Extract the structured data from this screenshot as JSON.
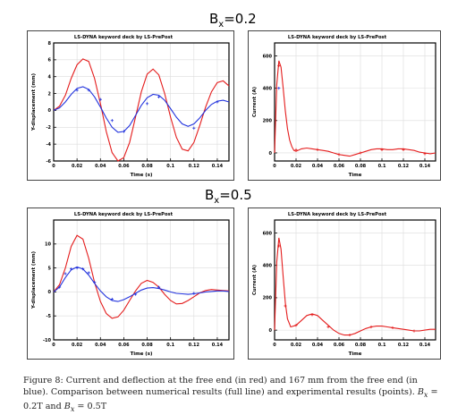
{
  "headings": [
    {
      "sym": "B",
      "sub": "x",
      "rest": "=0.2"
    },
    {
      "sym": "B",
      "sub": "x",
      "rest": "=0.5"
    }
  ],
  "caption": {
    "fig_label": "Figure 8:",
    "text": "Current and deflection at the free end (in red) and 167 mm from the free end (in blue). Comparison between numerical results (full line) and experimental results (points).",
    "bvals": [
      {
        "sym": "B",
        "sub": "x",
        "rest": " = 0.2T"
      },
      {
        "sym": "B",
        "sub": "x",
        "rest": " = 0.5T"
      }
    ],
    "conj": " and "
  },
  "colors": {
    "red": "#e41c1c",
    "blue": "#2233dd",
    "frame": "#000000",
    "grid": "#dcdcdc"
  },
  "chart_data": [
    {
      "type": "line",
      "title": "LS-DYNA keyword deck by LS-PrePost",
      "xlabel": "Time (s)",
      "ylabel": "Y-displacement (mm)",
      "xlim": [
        0,
        0.15
      ],
      "ylim": [
        -6,
        8
      ],
      "xticks": [
        "0",
        "0.02",
        "0.04",
        "0.06",
        "0.08",
        "0.1",
        "0.12",
        "0.14"
      ],
      "yticks": [
        "-6",
        "-4",
        "-2",
        "0",
        "2",
        "4",
        "6",
        "8"
      ],
      "grid": true,
      "series": [
        {
          "color": "red",
          "x": [
            0,
            0.005,
            0.01,
            0.015,
            0.02,
            0.025,
            0.03,
            0.035,
            0.04,
            0.045,
            0.05,
            0.055,
            0.06,
            0.065,
            0.07,
            0.075,
            0.08,
            0.085,
            0.09,
            0.095,
            0.1,
            0.105,
            0.11,
            0.115,
            0.12,
            0.125,
            0.13,
            0.135,
            0.14,
            0.145,
            0.15
          ],
          "values": [
            0,
            0.5,
            1.8,
            3.8,
            5.4,
            6.1,
            5.8,
            3.8,
            0.8,
            -2.5,
            -5.0,
            -6.0,
            -5.6,
            -3.8,
            -0.8,
            2.2,
            4.3,
            4.9,
            4.2,
            2.0,
            -0.8,
            -3.2,
            -4.6,
            -4.8,
            -3.8,
            -1.8,
            0.4,
            2.2,
            3.3,
            3.5,
            2.9
          ]
        },
        {
          "color": "blue",
          "x": [
            0,
            0.005,
            0.01,
            0.015,
            0.02,
            0.025,
            0.03,
            0.035,
            0.04,
            0.045,
            0.05,
            0.055,
            0.06,
            0.065,
            0.07,
            0.075,
            0.08,
            0.085,
            0.09,
            0.095,
            0.1,
            0.105,
            0.11,
            0.115,
            0.12,
            0.125,
            0.13,
            0.135,
            0.14,
            0.145,
            0.15
          ],
          "values": [
            0,
            0.3,
            1.0,
            1.9,
            2.6,
            2.8,
            2.5,
            1.6,
            0.4,
            -0.9,
            -2.0,
            -2.6,
            -2.5,
            -1.8,
            -0.6,
            0.6,
            1.5,
            1.9,
            1.8,
            1.2,
            0.2,
            -0.8,
            -1.6,
            -1.9,
            -1.6,
            -0.9,
            0,
            0.7,
            1.1,
            1.2,
            1.0
          ]
        }
      ],
      "points": [
        {
          "color": "blue",
          "x": [
            0.02,
            0.03,
            0.04,
            0.05,
            0.06,
            0.08,
            0.09,
            0.12,
            0.14
          ],
          "values": [
            2.4,
            2.4,
            1.3,
            -1.2,
            -2.5,
            0.8,
            1.6,
            -2.1,
            1.0
          ]
        }
      ]
    },
    {
      "type": "line",
      "title": "LS-DYNA keyword deck by LS-PrePost",
      "xlabel": "Time",
      "ylabel": "Current (A)",
      "xlim": [
        0,
        0.15
      ],
      "ylim": [
        -50,
        680
      ],
      "xticks": [
        "0",
        "0.02",
        "0.04",
        "0.06",
        "0.08",
        "0.1",
        "0.12",
        "0.14"
      ],
      "yticks": [
        "0",
        "200",
        "400",
        "600"
      ],
      "grid": true,
      "series": [
        {
          "color": "red",
          "x": [
            0,
            0.002,
            0.004,
            0.006,
            0.008,
            0.01,
            0.012,
            0.014,
            0.016,
            0.018,
            0.02,
            0.025,
            0.03,
            0.035,
            0.04,
            0.045,
            0.05,
            0.055,
            0.06,
            0.065,
            0.07,
            0.075,
            0.08,
            0.085,
            0.09,
            0.095,
            0.1,
            0.105,
            0.11,
            0.115,
            0.12,
            0.125,
            0.13,
            0.135,
            0.14,
            0.145,
            0.15
          ],
          "values": [
            0,
            420,
            570,
            530,
            400,
            260,
            150,
            80,
            40,
            15,
            10,
            25,
            30,
            25,
            20,
            15,
            10,
            0,
            -10,
            -15,
            -20,
            -10,
            0,
            10,
            20,
            25,
            25,
            20,
            20,
            25,
            25,
            20,
            15,
            5,
            0,
            -5,
            0
          ]
        }
      ],
      "points": [
        {
          "color": "red",
          "x": [
            0.004,
            0.02,
            0.04,
            0.06,
            0.08,
            0.1,
            0.12,
            0.14
          ],
          "values": [
            540,
            20,
            20,
            -10,
            0,
            20,
            20,
            -5
          ]
        },
        {
          "color": "blue",
          "x": [
            0.004
          ],
          "values": [
            400
          ]
        }
      ]
    },
    {
      "type": "line",
      "title": "LS-DYNA keyword deck by LS-PrePost",
      "xlabel": "Time (s)",
      "ylabel": "Y-displacement (mm)",
      "xlim": [
        0,
        0.15
      ],
      "ylim": [
        -10,
        15
      ],
      "xticks": [
        "0",
        "0.02",
        "0.04",
        "0.06",
        "0.08",
        "0.1",
        "0.12",
        "0.14"
      ],
      "yticks": [
        "-10",
        "-5",
        "0",
        "5",
        "10"
      ],
      "grid": true,
      "series": [
        {
          "color": "red",
          "x": [
            0,
            0.005,
            0.01,
            0.015,
            0.02,
            0.025,
            0.03,
            0.035,
            0.04,
            0.045,
            0.05,
            0.055,
            0.06,
            0.065,
            0.07,
            0.075,
            0.08,
            0.085,
            0.09,
            0.095,
            0.1,
            0.105,
            0.11,
            0.115,
            0.12,
            0.125,
            0.13,
            0.135,
            0.14,
            0.145,
            0.15
          ],
          "values": [
            0,
            1.5,
            5.0,
            9.5,
            11.8,
            11.0,
            7.0,
            2.0,
            -2.0,
            -4.5,
            -5.5,
            -5.2,
            -3.8,
            -1.8,
            0.2,
            1.8,
            2.4,
            2.0,
            1.0,
            -0.5,
            -1.8,
            -2.5,
            -2.4,
            -1.8,
            -1.0,
            -0.2,
            0.3,
            0.5,
            0.4,
            0.3,
            0.2
          ]
        },
        {
          "color": "blue",
          "x": [
            0,
            0.005,
            0.01,
            0.015,
            0.02,
            0.025,
            0.03,
            0.035,
            0.04,
            0.045,
            0.05,
            0.055,
            0.06,
            0.065,
            0.07,
            0.075,
            0.08,
            0.085,
            0.09,
            0.095,
            0.1,
            0.105,
            0.11,
            0.115,
            0.12,
            0.125,
            0.13,
            0.135,
            0.14,
            0.145,
            0.15
          ],
          "values": [
            0,
            1.0,
            3.0,
            4.6,
            5.2,
            4.8,
            3.5,
            1.8,
            0.2,
            -1.0,
            -1.8,
            -2.0,
            -1.6,
            -1.0,
            -0.3,
            0.4,
            0.8,
            0.9,
            0.7,
            0.4,
            0,
            -0.3,
            -0.4,
            -0.5,
            -0.4,
            -0.2,
            0,
            0.1,
            0.2,
            0.2,
            0.1
          ]
        }
      ],
      "points": [
        {
          "color": "blue",
          "x": [
            0.005,
            0.01,
            0.015,
            0.02,
            0.025,
            0.03,
            0.035,
            0.05,
            0.07,
            0.09,
            0.12
          ],
          "values": [
            1.0,
            3.8,
            4.8,
            5.0,
            4.8,
            4.0,
            2.0,
            -1.5,
            -0.5,
            1.0,
            -0.3
          ]
        }
      ]
    },
    {
      "type": "line",
      "title": "LS-DYNA keyword deck by LS-PrePost",
      "xlabel": "Time",
      "ylabel": "Current (A)",
      "xlim": [
        0,
        0.15
      ],
      "ylim": [
        -60,
        680
      ],
      "xticks": [
        "0",
        "0.02",
        "0.04",
        "0.06",
        "0.08",
        "0.1",
        "0.12",
        "0.14"
      ],
      "yticks": [
        "0",
        "200",
        "400",
        "600"
      ],
      "grid": true,
      "series": [
        {
          "color": "red",
          "x": [
            0,
            0.002,
            0.004,
            0.006,
            0.008,
            0.01,
            0.012,
            0.015,
            0.02,
            0.025,
            0.03,
            0.035,
            0.04,
            0.045,
            0.05,
            0.055,
            0.06,
            0.065,
            0.07,
            0.075,
            0.08,
            0.085,
            0.09,
            0.095,
            0.1,
            0.105,
            0.11,
            0.115,
            0.12,
            0.125,
            0.13,
            0.135,
            0.14,
            0.145,
            0.15
          ],
          "values": [
            0,
            420,
            570,
            500,
            330,
            170,
            70,
            20,
            30,
            60,
            90,
            100,
            90,
            60,
            30,
            0,
            -20,
            -30,
            -30,
            -20,
            -5,
            10,
            20,
            25,
            25,
            20,
            15,
            10,
            5,
            0,
            -5,
            -5,
            0,
            5,
            5
          ]
        }
      ],
      "points": [
        {
          "color": "red",
          "x": [
            0.004,
            0.01,
            0.02,
            0.035,
            0.05,
            0.07,
            0.09,
            0.11,
            0.13
          ],
          "values": [
            520,
            150,
            30,
            95,
            20,
            -30,
            20,
            15,
            -5
          ]
        }
      ]
    }
  ]
}
